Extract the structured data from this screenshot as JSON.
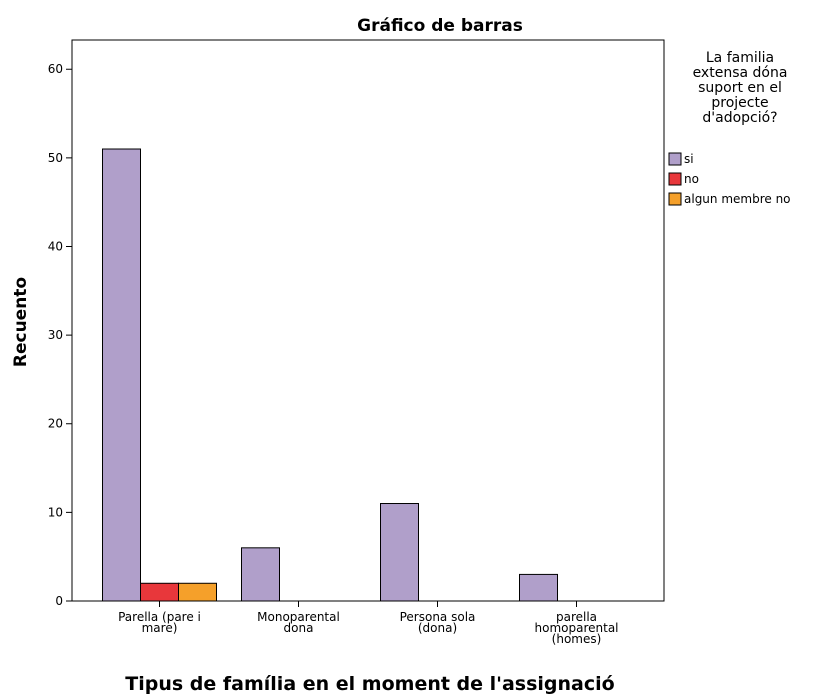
{
  "chart_data": {
    "type": "bar",
    "title": "Gráfico de barras",
    "x_label": "Tipus de família en el moment de l'assignació",
    "y_label": "Recuento",
    "categories": [
      "Parella (pare i\nmare)",
      "Monoparental\ndona",
      "Persona sola\n(dona)",
      "parella\nhomoparental\n(homes)"
    ],
    "series": [
      {
        "name": "si",
        "color": "#b09fca",
        "values": [
          51,
          6,
          11,
          3
        ]
      },
      {
        "name": "no",
        "color": "#e8373b",
        "values": [
          2,
          0,
          0,
          0
        ]
      },
      {
        "name": "algun membre no",
        "color": "#f5a02a",
        "values": [
          2,
          0,
          0,
          0
        ]
      }
    ],
    "legend_title": "La familia\nextensa dóna\nsuport en el\nprojecte\nd'adopció?",
    "ylim": [
      0,
      63.3
    ],
    "yticks": [
      0,
      10,
      20,
      30,
      40,
      50,
      60
    ],
    "legend": "right"
  }
}
